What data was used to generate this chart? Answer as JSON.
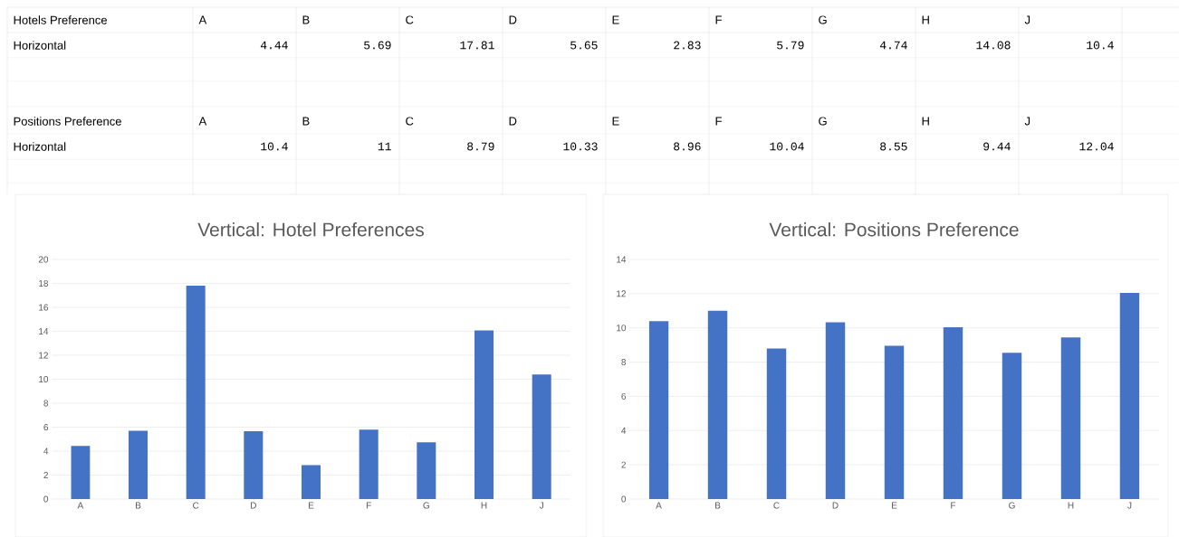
{
  "chart_data": [
    {
      "type": "other",
      "categories": [
        "A",
        "B",
        "C",
        "D",
        "E",
        "F",
        "G",
        "H",
        "J"
      ],
      "annotations": [
        "Hotels Preference",
        "Horizontal",
        "4.44",
        "5.69",
        "17.81",
        "5.65",
        "2.83",
        "5.79",
        "4.74",
        "14.08",
        "10.4"
      ]
    },
    {
      "type": "other",
      "categories": [
        "A",
        "B",
        "C",
        "D",
        "E",
        "F",
        "G",
        "H",
        "J"
      ],
      "annotations": [
        "Positions Preference",
        "Horizontal",
        "10.4",
        "11",
        "8.79",
        "10.33",
        "8.96",
        "10.04",
        "8.55",
        "9.44",
        "12.04"
      ]
    },
    {
      "type": "bar",
      "title": "Vertical: Hotel Preferences",
      "categories": [
        "A",
        "B",
        "C",
        "D",
        "E",
        "F",
        "G",
        "H",
        "J"
      ],
      "values": [
        4.44,
        5.69,
        17.81,
        5.65,
        2.83,
        5.79,
        4.74,
        14.08,
        10.4
      ],
      "color": "#4472c4",
      "ylim": [
        0,
        20
      ],
      "yticks": [
        0,
        2,
        4,
        6,
        8,
        10,
        12,
        14,
        16,
        18,
        20
      ],
      "grid": "y"
    },
    {
      "type": "bar",
      "title": "Vertical: Positions Preference",
      "categories": [
        "A",
        "B",
        "C",
        "D",
        "E",
        "F",
        "G",
        "H",
        "J"
      ],
      "values": [
        10.4,
        11,
        8.79,
        10.33,
        8.96,
        10.04,
        8.55,
        9.44,
        12.04
      ],
      "color": "#4472c4",
      "ylim": [
        0,
        14
      ],
      "yticks": [
        0,
        2,
        4,
        6,
        8,
        10,
        12,
        14
      ],
      "grid": "y"
    }
  ]
}
